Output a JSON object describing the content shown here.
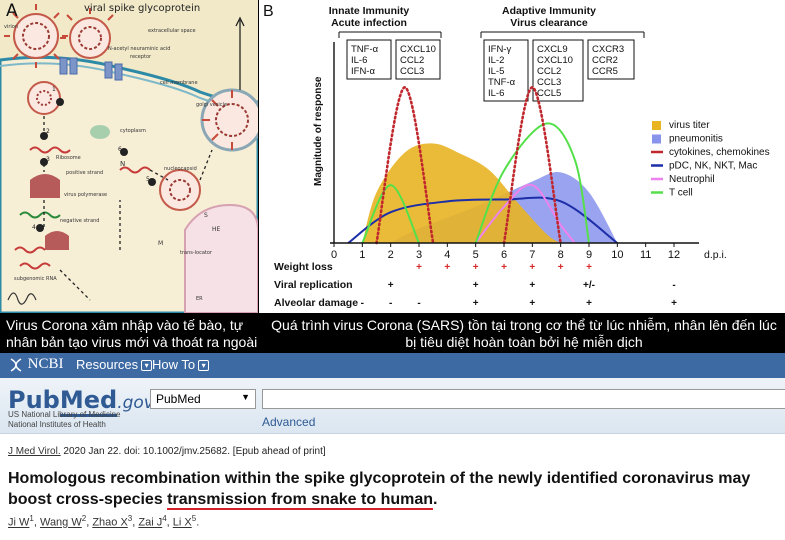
{
  "panel_a": {
    "letter": "A",
    "title": "viral spike glycoprotein",
    "labels": {
      "virion": "virion",
      "extracellular": "extracellular space",
      "nana": "N-acetyl neuraminic acid",
      "receptor": "receptor",
      "membrane": "cell membrane",
      "golgi": "golgi vesicle",
      "cytoplasm": "cytoplasm",
      "ribosome": "Ribosome",
      "positive": "positive strand",
      "polymerase": "virus polymerase",
      "negative": "negative strand",
      "subgenomic": "subgenomic RNA",
      "nucleocapsid": "nucleocapsid",
      "n": "N",
      "s": "S",
      "he": "HE",
      "m": "M",
      "translocator": "trans-locator",
      "er": "ER"
    },
    "steps": [
      "1",
      "2",
      "3",
      "4",
      "5",
      "6"
    ]
  },
  "panel_b": {
    "letter": "B",
    "phase1": [
      "Innate Immunity",
      "Acute infection"
    ],
    "phase2": [
      "Adaptive Immunity",
      "Virus clearance"
    ],
    "box1": [
      "TNF-α",
      "IL-6",
      "IFN-α"
    ],
    "box2": [
      "CXCL10",
      "CCL2",
      "CCL3"
    ],
    "box3": [
      "IFN-γ",
      "IL-2",
      "IL-5",
      "TNF-α",
      "IL-6"
    ],
    "box4": [
      "CXCL9",
      "CXCL10",
      "CCL2",
      "CCL3",
      "CCL5"
    ],
    "box5": [
      "CXCR3",
      "CCR2",
      "CCR5"
    ],
    "ylabel": "Magnitude of response",
    "xunit": "d.p.i.",
    "legend": [
      {
        "label": "virus titer",
        "color": "#e8b422"
      },
      {
        "label": "pneumonitis",
        "color": "#8893ec"
      },
      {
        "label": "cytokines, chemokines",
        "color": "#c0282e"
      },
      {
        "label": "pDC, NK, NKT, Mac",
        "color": "#1c2ea8"
      },
      {
        "label": "Neutrophil",
        "color": "#ee82ee"
      },
      {
        "label": "T cell",
        "color": "#55e04a"
      }
    ],
    "rows": [
      {
        "label": "Weight loss",
        "marks": [
          {
            "d": 3,
            "s": "+"
          },
          {
            "d": 4,
            "s": "+"
          },
          {
            "d": 5,
            "s": "+"
          },
          {
            "d": 6,
            "s": "+"
          },
          {
            "d": 7,
            "s": "+"
          },
          {
            "d": 8,
            "s": "+"
          },
          {
            "d": 9,
            "s": "+"
          }
        ],
        "color": "#d62a2a"
      },
      {
        "label": "Viral replication",
        "marks": [
          {
            "d": 2,
            "s": "+"
          },
          {
            "d": 5,
            "s": "+"
          },
          {
            "d": 7,
            "s": "+"
          },
          {
            "d": 9,
            "s": "+/-"
          },
          {
            "d": 12,
            "s": "-"
          }
        ],
        "color": "#111111"
      },
      {
        "label": "Alveolar damage",
        "marks": [
          {
            "d": 1,
            "s": "-"
          },
          {
            "d": 2,
            "s": "-"
          },
          {
            "d": 3,
            "s": "-"
          },
          {
            "d": 5,
            "s": "+"
          },
          {
            "d": 7,
            "s": "+"
          },
          {
            "d": 9,
            "s": "+"
          },
          {
            "d": 12,
            "s": "+"
          }
        ],
        "color": "#111111"
      }
    ]
  },
  "chart_data": {
    "type": "area",
    "xlabel": "d.p.i.",
    "ylabel": "Magnitude of response",
    "x_ticks": [
      0,
      1,
      2,
      3,
      4,
      5,
      6,
      7,
      8,
      9,
      10,
      11,
      12
    ],
    "xlim": [
      0,
      13
    ],
    "ylim": [
      0,
      1
    ],
    "legend_position": "right",
    "series": [
      {
        "name": "virus titer",
        "points": [
          [
            1,
            0
          ],
          [
            1.5,
            0.28
          ],
          [
            2.5,
            0.5
          ],
          [
            3.5,
            0.55
          ],
          [
            4.5,
            0.49
          ],
          [
            5.5,
            0.4
          ],
          [
            6.5,
            0.22
          ],
          [
            7.5,
            0.05
          ],
          [
            8,
            0
          ]
        ]
      },
      {
        "name": "pneumonitis",
        "points": [
          [
            2,
            0
          ],
          [
            3,
            0.08
          ],
          [
            5,
            0.2
          ],
          [
            7,
            0.34
          ],
          [
            8,
            0.39
          ],
          [
            9,
            0.28
          ],
          [
            10,
            0
          ]
        ]
      },
      {
        "name": "cytokines, chemokines",
        "points": [
          [
            1.5,
            0
          ],
          [
            2.5,
            0.86
          ],
          [
            3.5,
            0
          ],
          [
            6,
            0
          ],
          [
            7,
            0.86
          ],
          [
            8,
            0
          ]
        ]
      },
      {
        "name": "pDC, NK, NKT, Mac",
        "points": [
          [
            0.5,
            0
          ],
          [
            2,
            0.17
          ],
          [
            4,
            0.23
          ],
          [
            6,
            0.24
          ],
          [
            8,
            0.23
          ],
          [
            10,
            0
          ]
        ]
      },
      {
        "name": "Neutrophil",
        "points": [
          [
            5,
            0
          ],
          [
            6,
            0.2
          ],
          [
            7,
            0.32
          ],
          [
            8,
            0.1
          ],
          [
            8.5,
            0
          ]
        ]
      },
      {
        "name": "T cell",
        "points": [
          [
            1,
            0
          ],
          [
            2,
            0.32
          ],
          [
            3,
            0
          ],
          [
            5,
            0
          ],
          [
            6,
            0.4
          ],
          [
            7.5,
            0.66
          ],
          [
            8.5,
            0.46
          ],
          [
            9,
            0
          ]
        ]
      }
    ]
  },
  "captions": {
    "a": "Virus Corona xâm nhập vào tế bào, tự nhân bản tạo virus mới và thoát ra ngoài",
    "b": "Quá trình virus Corona (SARS) tồn tại trong cơ thể từ lúc nhiễm, nhân lên đến lúc bị tiêu diệt hoàn toàn bởi hệ miễn dịch"
  },
  "pubmed": {
    "ncbi": "NCBI",
    "resources": "Resources",
    "howto": "How To",
    "logo_pub": "Pub",
    "logo_med": "Med",
    "logo_gov": ".gov",
    "org1": "US National Library of Medicine",
    "org2": "National Institutes of Health",
    "db": "PubMed",
    "search_value": "",
    "advanced": "Advanced",
    "journal": "J Med Virol.",
    "citation": " 2020 Jan 22. doi: 10.1002/jmv.25682. [Epub ahead of print]",
    "title_pre": "Homologous recombination within the spike glycoprotein of the newly identified coronavirus may boost cross-species ",
    "title_hl": "transmission from snake to human",
    "title_post": ".",
    "authors": [
      {
        "name": "Ji W",
        "sup": "1"
      },
      {
        "name": "Wang W",
        "sup": "2"
      },
      {
        "name": "Zhao X",
        "sup": "3"
      },
      {
        "name": "Zai J",
        "sup": "4"
      },
      {
        "name": "Li X",
        "sup": "5"
      }
    ]
  }
}
